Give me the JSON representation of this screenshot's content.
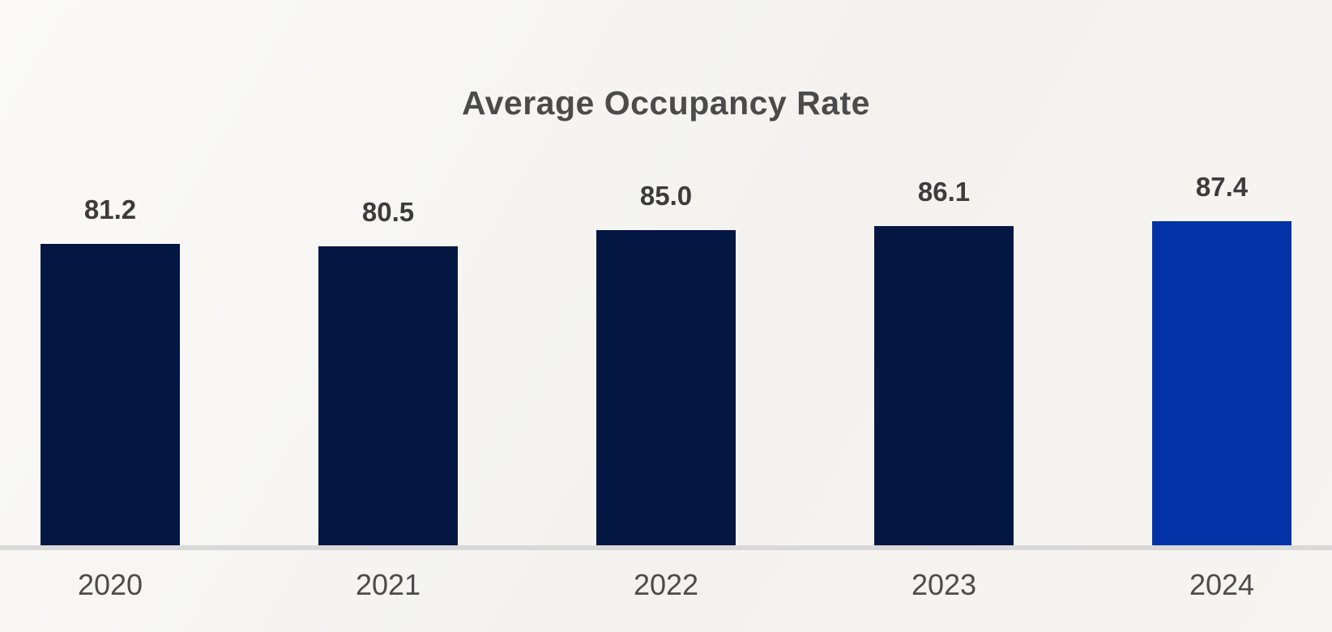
{
  "chart_data": {
    "type": "bar",
    "title": "Average Occupancy Rate",
    "categories": [
      "2020",
      "2021",
      "2022",
      "2023",
      "2024"
    ],
    "values": [
      81.2,
      80.5,
      85.0,
      86.1,
      87.4
    ],
    "value_labels": [
      "81.2",
      "80.5",
      "85.0",
      "86.1",
      "87.4"
    ],
    "xlabel": "",
    "ylabel": "",
    "legend": "none",
    "grid": false,
    "y_baseline_value": 0,
    "highlight_index": 4,
    "colors": {
      "bar": "#041742",
      "bar_highlight": "#0433A8",
      "axis_line": "#d9d9d9",
      "title_text": "#4b4b4b",
      "value_text": "#3c3c3c",
      "tick_text": "#4c4c4c",
      "background": "#f5f4f1"
    }
  }
}
